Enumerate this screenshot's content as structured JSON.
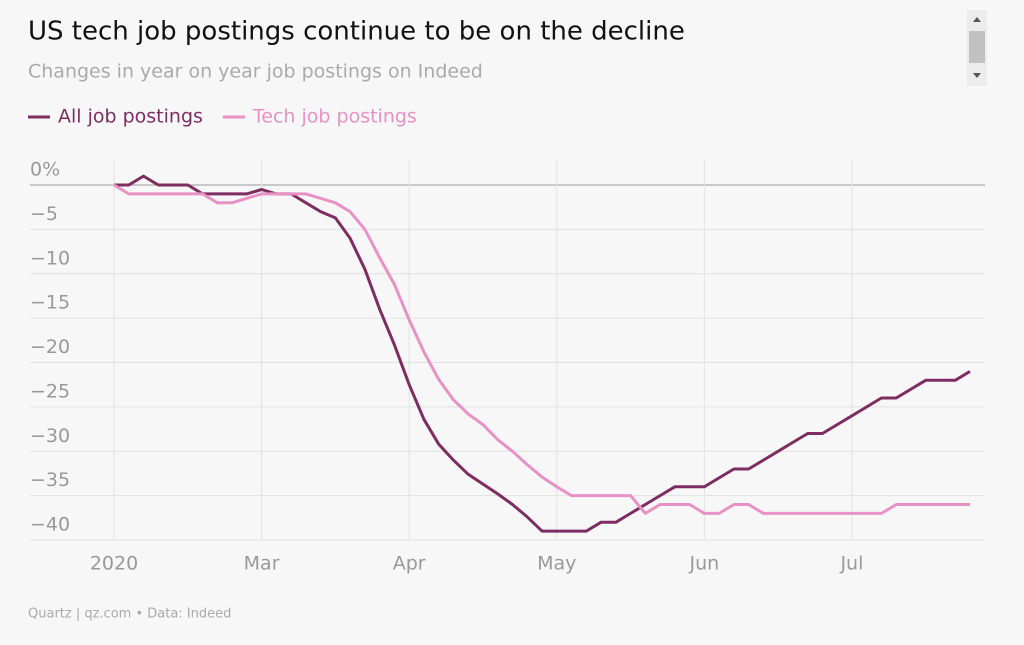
{
  "chart_data": {
    "type": "line",
    "title": "US tech job postings continue to be on the decline",
    "subtitle": "Changes in year on year job postings on Indeed",
    "source": "Quartz | qz.com • Data: Indeed",
    "categories": [
      "2020",
      null,
      null,
      null,
      null,
      null,
      null,
      null,
      null,
      null,
      "Mar",
      null,
      null,
      null,
      null,
      null,
      null,
      null,
      null,
      null,
      "Apr",
      null,
      null,
      null,
      null,
      null,
      null,
      null,
      null,
      null,
      "May",
      null,
      null,
      null,
      null,
      null,
      null,
      null,
      null,
      null,
      "Jun",
      null,
      null,
      null,
      null,
      null,
      null,
      null,
      null,
      null,
      "Jul",
      null,
      null,
      null,
      null,
      null,
      null,
      null,
      null
    ],
    "series": [
      {
        "name": "All job postings",
        "color": "#7e2d62",
        "values": [
          0,
          0,
          1,
          0,
          0,
          0,
          -1,
          -1,
          -1,
          -1,
          -0.5,
          -1,
          -1,
          -2,
          -3,
          -3.7,
          -6,
          -9.5,
          -14,
          -18,
          -22.5,
          -26.4,
          -29.2,
          -31,
          -32.6,
          -33.7,
          -34.8,
          -36,
          -37.4,
          -39,
          -39,
          -39,
          -39,
          -38,
          -38,
          -37,
          -36,
          -35,
          -34,
          -34,
          -34,
          -33,
          -32,
          -32,
          -31,
          -30,
          -29,
          -28,
          -28,
          -27,
          -26,
          -25,
          -24,
          -24,
          -23,
          -22,
          -22,
          -22,
          -21
        ]
      },
      {
        "name": "Tech job postings",
        "color": "#e891c6",
        "values": [
          0,
          -1,
          -1,
          -1,
          -1,
          -1,
          -1,
          -2,
          -2,
          -1.5,
          -1,
          -1,
          -1,
          -1,
          -1.5,
          -2,
          -3,
          -5,
          -8.2,
          -11.2,
          -15.2,
          -18.8,
          -21.9,
          -24.2,
          -25.8,
          -27,
          -28.7,
          -30,
          -31.5,
          -32.9,
          -34,
          -35,
          -35,
          -35,
          -35,
          -35,
          -37,
          -36,
          -36,
          -36,
          -37,
          -37,
          -36,
          -36,
          -37,
          -37,
          -37,
          -37,
          -37,
          -37,
          -37,
          -37,
          -37,
          -36,
          -36,
          -36,
          -36,
          -36,
          -36
        ]
      }
    ],
    "ylim": [
      -40,
      3
    ],
    "yticks": [
      {
        "value": 0,
        "label": "0%"
      },
      {
        "value": -5,
        "label": "−5"
      },
      {
        "value": -10,
        "label": "−10"
      },
      {
        "value": -15,
        "label": "−15"
      },
      {
        "value": -20,
        "label": "−20"
      },
      {
        "value": -25,
        "label": "−25"
      },
      {
        "value": -30,
        "label": "−30"
      },
      {
        "value": -35,
        "label": "−35"
      },
      {
        "value": -40,
        "label": "−40"
      }
    ],
    "grid": true
  }
}
